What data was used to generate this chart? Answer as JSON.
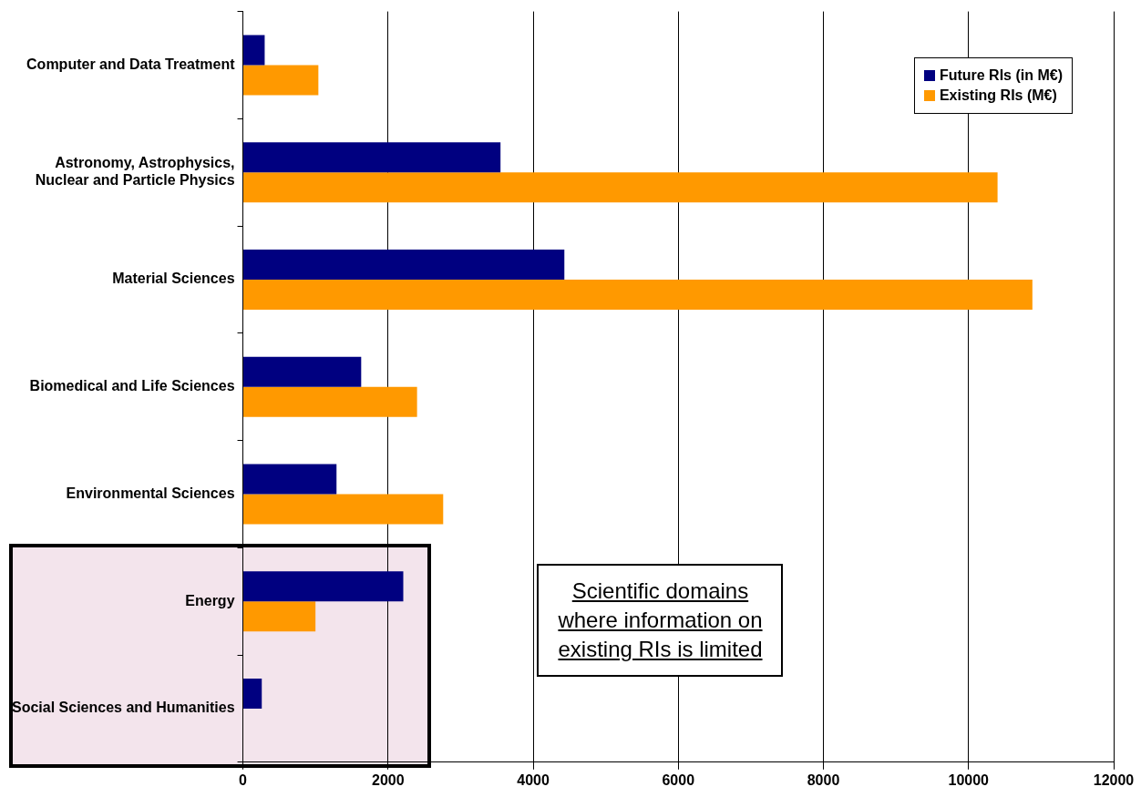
{
  "chart_data": {
    "type": "bar",
    "orientation": "horizontal",
    "categories": [
      "Computer and Data Treatment",
      "Astronomy, Astrophysics,\nNuclear and Particle Physics",
      "Material Sciences",
      "Biomedical and Life Sciences",
      "Environmental Sciences",
      "Energy",
      "Social Sciences and Humanities"
    ],
    "series": [
      {
        "name": "Future RIs (in M€)",
        "color": "#000080",
        "values": [
          300,
          3550,
          4430,
          1630,
          1290,
          2210,
          260
        ]
      },
      {
        "name": "Existing RIs (M€)",
        "color": "#ff9900",
        "values": [
          1040,
          10400,
          10880,
          2400,
          2760,
          1000,
          null
        ]
      }
    ],
    "xlim": [
      0,
      12000
    ],
    "xticks": [
      0,
      2000,
      4000,
      6000,
      8000,
      10000,
      12000
    ],
    "grid": "x",
    "legend": "top right",
    "annotations": [
      "Scientific domains where information on existing RIs is limited"
    ]
  }
}
